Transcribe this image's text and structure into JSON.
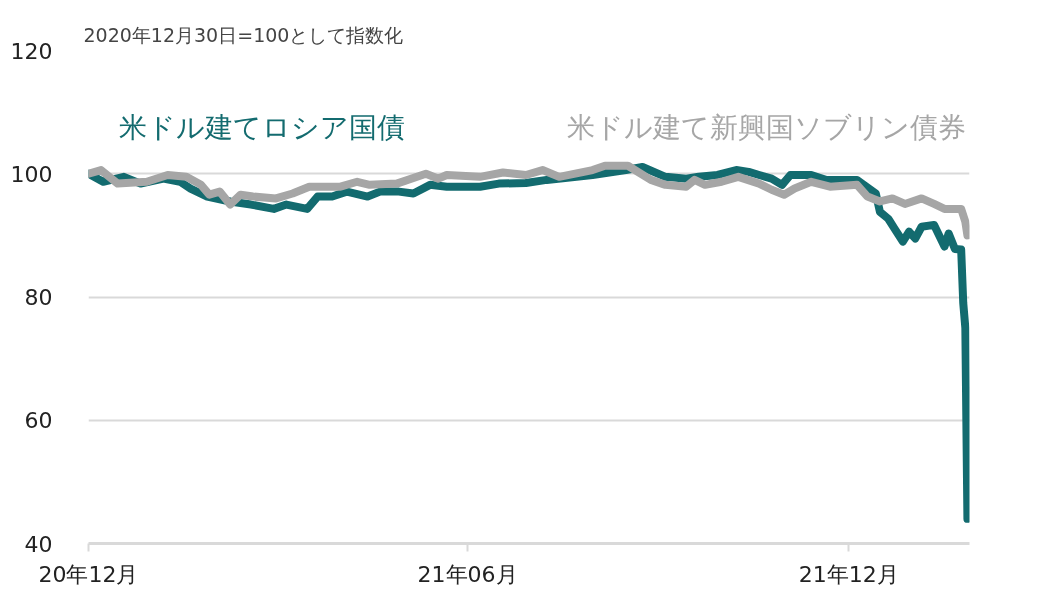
{
  "chart_data": {
    "type": "line",
    "title": "2020年12月30日=100として指数化",
    "xlim": [
      "2020-12-30",
      "2022-02-26"
    ],
    "ylim": [
      40,
      120
    ],
    "yticks": [
      40,
      60,
      80,
      100,
      120
    ],
    "xticks": [
      {
        "value": "2020-12-30",
        "label": "20年12月"
      },
      {
        "value": "2021-06-30",
        "label": "21年06月"
      },
      {
        "value": "2021-12-30",
        "label": "21年12月"
      }
    ],
    "grid": "y",
    "series": [
      {
        "name": "米ドル建てロシア国債",
        "color": "#136b6f",
        "x": [
          "2020-12-30",
          "2021-01-06",
          "2021-01-16",
          "2021-01-24",
          "2021-02-04",
          "2021-02-12",
          "2021-02-17",
          "2021-02-25",
          "2021-03-08",
          "2021-03-18",
          "2021-03-29",
          "2021-04-04",
          "2021-04-14",
          "2021-04-19",
          "2021-04-26",
          "2021-05-03",
          "2021-05-13",
          "2021-05-19",
          "2021-05-28",
          "2021-06-04",
          "2021-06-12",
          "2021-06-20",
          "2021-07-06",
          "2021-07-15",
          "2021-07-28",
          "2021-08-07",
          "2021-08-29",
          "2021-09-14",
          "2021-09-22",
          "2021-10-03",
          "2021-10-13",
          "2021-10-19",
          "2021-10-28",
          "2021-11-06",
          "2021-11-12",
          "2021-11-17",
          "2021-11-23",
          "2021-11-28",
          "2021-12-02",
          "2021-12-12",
          "2021-12-19",
          "2022-01-03",
          "2022-01-12",
          "2022-01-14",
          "2022-01-18",
          "2022-01-21",
          "2022-01-25",
          "2022-01-28",
          "2022-01-31",
          "2022-02-03",
          "2022-02-09",
          "2022-02-14",
          "2022-02-16",
          "2022-02-19",
          "2022-02-22",
          "2022-02-23",
          "2022-02-24",
          "2022-02-25"
        ],
        "values": [
          100,
          98.7,
          99.5,
          98.4,
          99.2,
          98.7,
          97.6,
          96.3,
          95.5,
          95,
          94.3,
          95,
          94.3,
          96.3,
          96.3,
          97.1,
          96.3,
          97.1,
          97.1,
          96.8,
          98.2,
          97.9,
          97.9,
          98.4,
          98.5,
          99,
          99.8,
          100.6,
          101.1,
          99.5,
          99.2,
          99.5,
          99.8,
          100.6,
          100.3,
          99.8,
          99.2,
          98.2,
          99.8,
          99.8,
          99,
          99,
          96.8,
          93.8,
          92.7,
          91.1,
          89,
          90.6,
          89.5,
          91.4,
          91.7,
          88.2,
          90.3,
          87.8,
          87.7,
          79,
          75,
          44
        ]
      },
      {
        "name": "米ドル建て新興国ソブリン債券",
        "color": "#a6a6a6",
        "x": [
          "2020-12-30",
          "2021-01-05",
          "2021-01-13",
          "2021-01-27",
          "2021-02-06",
          "2021-02-15",
          "2021-02-22",
          "2021-02-26",
          "2021-03-03",
          "2021-03-08",
          "2021-03-13",
          "2021-03-19",
          "2021-03-30",
          "2021-04-07",
          "2021-04-15",
          "2021-04-30",
          "2021-05-08",
          "2021-05-14",
          "2021-05-27",
          "2021-06-10",
          "2021-06-16",
          "2021-06-20",
          "2021-07-06",
          "2021-07-17",
          "2021-07-28",
          "2021-08-05",
          "2021-08-13",
          "2021-08-29",
          "2021-09-04",
          "2021-09-15",
          "2021-09-26",
          "2021-10-03",
          "2021-10-13",
          "2021-10-17",
          "2021-10-22",
          "2021-10-30",
          "2021-11-07",
          "2021-11-17",
          "2021-11-23",
          "2021-11-29",
          "2021-12-04",
          "2021-12-12",
          "2021-12-21",
          "2022-01-03",
          "2022-01-08",
          "2022-01-14",
          "2022-01-20",
          "2022-01-26",
          "2022-02-03",
          "2022-02-09",
          "2022-02-14",
          "2022-02-22",
          "2022-02-24",
          "2022-02-25"
        ],
        "values": [
          100,
          100.6,
          98.4,
          98.7,
          99.8,
          99.5,
          98.2,
          96.6,
          97.1,
          95,
          96.6,
          96.3,
          96,
          96.8,
          97.9,
          97.9,
          98.7,
          98.2,
          98.4,
          100,
          99.2,
          99.8,
          99.5,
          100.2,
          99.8,
          100.6,
          99.5,
          100.6,
          101.3,
          101.3,
          99,
          98.2,
          97.9,
          99,
          98.2,
          98.7,
          99.5,
          98.4,
          97.4,
          96.6,
          97.6,
          98.7,
          97.9,
          98.2,
          96.3,
          95.5,
          96,
          95.1,
          96,
          95.1,
          94.3,
          94.3,
          92.2,
          90
        ]
      }
    ]
  }
}
